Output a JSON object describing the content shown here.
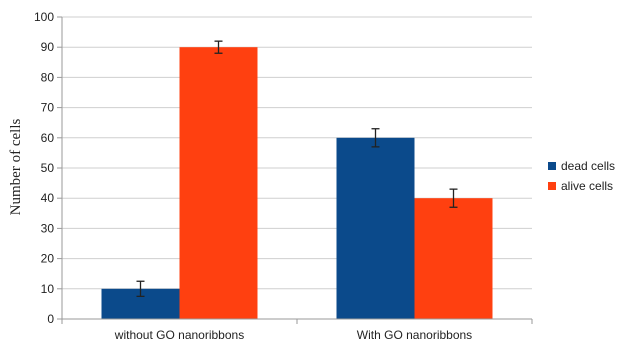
{
  "chart_data": {
    "type": "bar",
    "categories": [
      "without GO nanoribbons",
      "With GO nanoribbons"
    ],
    "series": [
      {
        "name": "dead cells",
        "color": "#0b4a8b",
        "values": [
          10,
          60
        ],
        "errors": [
          2.5,
          3
        ]
      },
      {
        "name": "alive cells",
        "color": "#ff4010",
        "values": [
          90,
          40
        ],
        "errors": [
          2,
          3
        ]
      }
    ],
    "ylabel": "Number of cells",
    "ylim": [
      0,
      100
    ],
    "yticks": [
      0,
      10,
      20,
      30,
      40,
      50,
      60,
      70,
      80,
      90,
      100
    ],
    "grid": true,
    "legend": "right"
  }
}
